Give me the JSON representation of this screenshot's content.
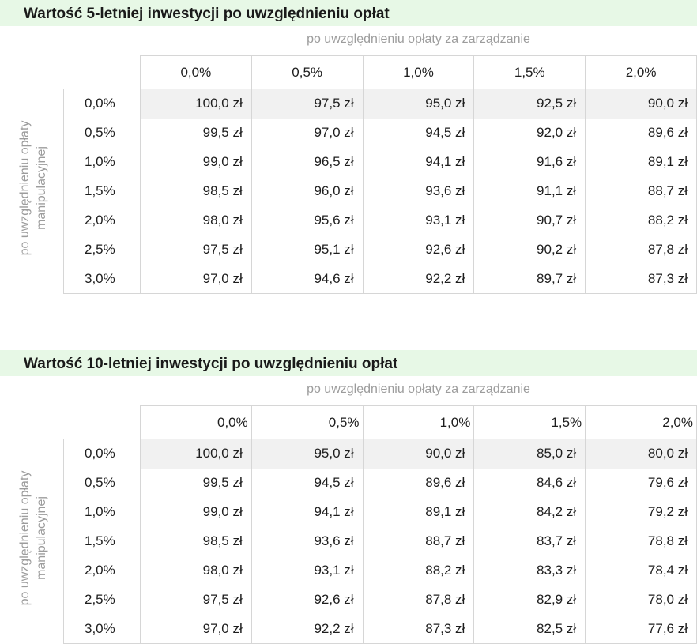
{
  "tables": [
    {
      "title": "Wartość 5-letniej inwestycji po uwzględnieniu opłat",
      "col_caption": "po uwzględnieniu opłaty za zarządzanie",
      "row_caption_line1": "po uwzględnieniu opłaty",
      "row_caption_line2": "manipulacyjnej",
      "columns": [
        "0,0%",
        "0,5%",
        "1,0%",
        "1,5%",
        "2,0%"
      ],
      "rows": [
        {
          "label": "0,0%",
          "values": [
            "100,0 zł",
            "97,5 zł",
            "95,0 zł",
            "92,5 zł",
            "90,0 zł"
          ]
        },
        {
          "label": "0,5%",
          "values": [
            "99,5 zł",
            "97,0 zł",
            "94,5 zł",
            "92,0 zł",
            "89,6 zł"
          ]
        },
        {
          "label": "1,0%",
          "values": [
            "99,0 zł",
            "96,5 zł",
            "94,1 zł",
            "91,6 zł",
            "89,1 zł"
          ]
        },
        {
          "label": "1,5%",
          "values": [
            "98,5 zł",
            "96,0 zł",
            "93,6 zł",
            "91,1 zł",
            "88,7 zł"
          ]
        },
        {
          "label": "2,0%",
          "values": [
            "98,0 zł",
            "95,6 zł",
            "93,1 zł",
            "90,7 zł",
            "88,2 zł"
          ]
        },
        {
          "label": "2,5%",
          "values": [
            "97,5 zł",
            "95,1 zł",
            "92,6 zł",
            "90,2 zł",
            "87,8 zł"
          ]
        },
        {
          "label": "3,0%",
          "values": [
            "97,0 zł",
            "94,6 zł",
            "92,2 zł",
            "89,7 zł",
            "87,3 zł"
          ]
        }
      ]
    },
    {
      "title": "Wartość 10-letniej inwestycji po uwzględnieniu opłat",
      "col_caption": "po uwzględnieniu opłaty za zarządzanie",
      "row_caption_line1": "po uwzględnieniu opłaty",
      "row_caption_line2": "manipulacyjnej",
      "columns": [
        "0,0%",
        "0,5%",
        "1,0%",
        "1,5%",
        "2,0%"
      ],
      "rows": [
        {
          "label": "0,0%",
          "values": [
            "100,0 zł",
            "95,0 zł",
            "90,0 zł",
            "85,0 zł",
            "80,0 zł"
          ]
        },
        {
          "label": "0,5%",
          "values": [
            "99,5 zł",
            "94,5 zł",
            "89,6 zł",
            "84,6 zł",
            "79,6 zł"
          ]
        },
        {
          "label": "1,0%",
          "values": [
            "99,0 zł",
            "94,1 zł",
            "89,1 zł",
            "84,2 zł",
            "79,2 zł"
          ]
        },
        {
          "label": "1,5%",
          "values": [
            "98,5 zł",
            "93,6 zł",
            "88,7 zł",
            "83,7 zł",
            "78,8 zł"
          ]
        },
        {
          "label": "2,0%",
          "values": [
            "98,0 zł",
            "93,1 zł",
            "88,2 zł",
            "83,3 zł",
            "78,4 zł"
          ]
        },
        {
          "label": "2,5%",
          "values": [
            "97,5 zł",
            "92,6 zł",
            "87,8 zł",
            "82,9 zł",
            "78,0 zł"
          ]
        },
        {
          "label": "3,0%",
          "values": [
            "97,0 zł",
            "92,2 zł",
            "87,3 zł",
            "82,5 zł",
            "77,6 zł"
          ]
        }
      ]
    }
  ]
}
